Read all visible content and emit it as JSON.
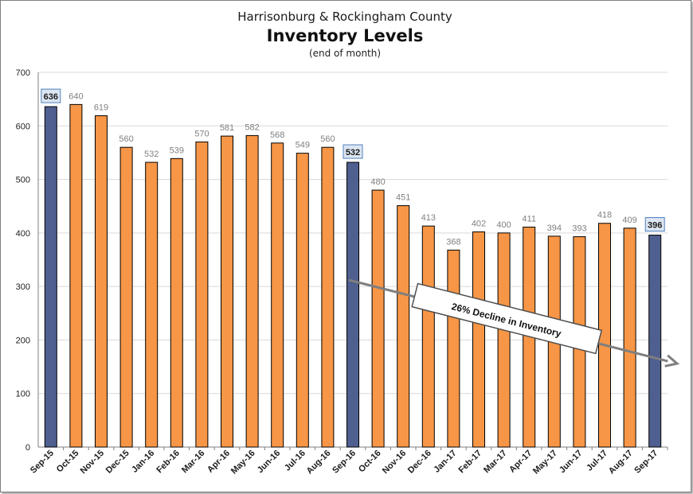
{
  "chart_data": {
    "type": "bar",
    "supertitle": "Harrisonburg & Rockingham County",
    "title": "Inventory Levels",
    "subtitle": "(end of month)",
    "categories": [
      "Sep-15",
      "Oct-15",
      "Nov-15",
      "Dec-15",
      "Jan-16",
      "Feb-16",
      "Mar-16",
      "Apr-16",
      "May-16",
      "Jun-16",
      "Jul-16",
      "Aug-16",
      "Sep-16",
      "Oct-16",
      "Nov-16",
      "Dec-16",
      "Jan-17",
      "Feb-17",
      "Mar-17",
      "Apr-17",
      "May-17",
      "Jun-17",
      "Jul-17",
      "Aug-17",
      "Sep-17"
    ],
    "values": [
      636,
      640,
      619,
      560,
      532,
      539,
      570,
      581,
      582,
      568,
      549,
      560,
      532,
      480,
      451,
      413,
      368,
      402,
      400,
      411,
      394,
      393,
      418,
      409,
      396
    ],
    "highlighted": [
      "Sep-15",
      "Sep-16",
      "Sep-17"
    ],
    "ylim": [
      0,
      700
    ],
    "yticks": [
      0,
      100,
      200,
      300,
      400,
      500,
      600,
      700
    ],
    "grid": true,
    "colors": {
      "bar": "#F79646",
      "highlight": "#4F5F8F",
      "bar_stroke": "#000000",
      "label": "#808080",
      "highlight_label_bg": "#DCE6F2",
      "highlight_label_border": "#4F81BD",
      "arrow": "#7F7F7F"
    },
    "annotation": "26% Decline in Inventory"
  }
}
